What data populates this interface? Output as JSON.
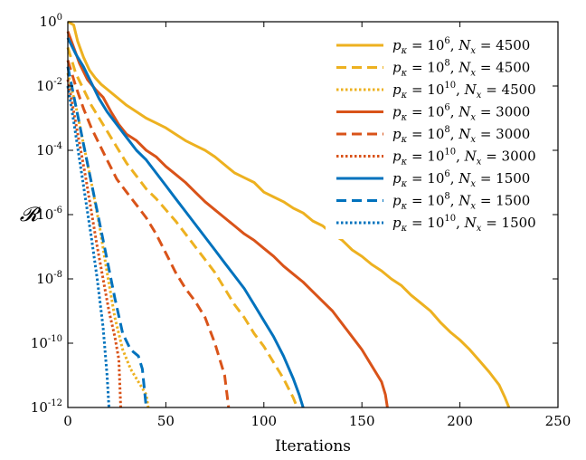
{
  "chart_data": {
    "type": "line",
    "title": "",
    "xlabel": "Iterations",
    "ylabel": "𝓡",
    "xlim": [
      0,
      250
    ],
    "ylim_log10": [
      -12,
      0
    ],
    "y_scale": "log",
    "x_ticks": [
      "0",
      "50",
      "100",
      "150",
      "200",
      "250"
    ],
    "y_ticks": [
      {
        "base": "10",
        "exp": "0"
      },
      {
        "base": "10",
        "exp": "-2"
      },
      {
        "base": "10",
        "exp": "-4"
      },
      {
        "base": "10",
        "exp": "-6"
      },
      {
        "base": "10",
        "exp": "-8"
      },
      {
        "base": "10",
        "exp": "-10"
      },
      {
        "base": "10",
        "exp": "-12"
      }
    ],
    "legend_position": "top-right",
    "series": [
      {
        "name": "p_κ = 10^6, N_x = 4500",
        "p_exp": "6",
        "nx": "4500",
        "color": "#EDB120",
        "dash": "solid",
        "points": [
          [
            0,
            0
          ],
          [
            3,
            -0.1
          ],
          [
            5,
            -0.6
          ],
          [
            8,
            -1.1
          ],
          [
            11,
            -1.5
          ],
          [
            14,
            -1.75
          ],
          [
            17,
            -1.95
          ],
          [
            20,
            -2.1
          ],
          [
            25,
            -2.35
          ],
          [
            30,
            -2.6
          ],
          [
            35,
            -2.8
          ],
          [
            40,
            -3.0
          ],
          [
            45,
            -3.15
          ],
          [
            50,
            -3.3
          ],
          [
            55,
            -3.5
          ],
          [
            60,
            -3.7
          ],
          [
            65,
            -3.85
          ],
          [
            70,
            -4.0
          ],
          [
            75,
            -4.2
          ],
          [
            80,
            -4.45
          ],
          [
            85,
            -4.7
          ],
          [
            90,
            -4.85
          ],
          [
            95,
            -5.0
          ],
          [
            100,
            -5.3
          ],
          [
            105,
            -5.45
          ],
          [
            110,
            -5.6
          ],
          [
            115,
            -5.8
          ],
          [
            120,
            -5.95
          ],
          [
            125,
            -6.2
          ],
          [
            130,
            -6.35
          ],
          [
            135,
            -6.6
          ],
          [
            140,
            -6.8
          ],
          [
            145,
            -7.1
          ],
          [
            150,
            -7.3
          ],
          [
            155,
            -7.55
          ],
          [
            160,
            -7.75
          ],
          [
            165,
            -8.0
          ],
          [
            170,
            -8.2
          ],
          [
            175,
            -8.5
          ],
          [
            180,
            -8.75
          ],
          [
            185,
            -9.0
          ],
          [
            190,
            -9.35
          ],
          [
            195,
            -9.65
          ],
          [
            200,
            -9.9
          ],
          [
            205,
            -10.2
          ],
          [
            210,
            -10.55
          ],
          [
            215,
            -10.9
          ],
          [
            220,
            -11.3
          ],
          [
            223,
            -11.7
          ],
          [
            225,
            -12
          ]
        ]
      },
      {
        "name": "p_κ = 10^8, N_x = 4500",
        "p_exp": "8",
        "nx": "4500",
        "color": "#EDB120",
        "dash": "dashed",
        "points": [
          [
            0,
            -0.8
          ],
          [
            4,
            -1.6
          ],
          [
            8,
            -2.1
          ],
          [
            12,
            -2.6
          ],
          [
            16,
            -3.0
          ],
          [
            20,
            -3.4
          ],
          [
            25,
            -3.9
          ],
          [
            30,
            -4.4
          ],
          [
            35,
            -4.8
          ],
          [
            40,
            -5.2
          ],
          [
            45,
            -5.5
          ],
          [
            50,
            -5.85
          ],
          [
            55,
            -6.2
          ],
          [
            60,
            -6.6
          ],
          [
            65,
            -7.0
          ],
          [
            70,
            -7.4
          ],
          [
            75,
            -7.8
          ],
          [
            80,
            -8.3
          ],
          [
            85,
            -8.8
          ],
          [
            90,
            -9.2
          ],
          [
            95,
            -9.7
          ],
          [
            100,
            -10.1
          ],
          [
            105,
            -10.6
          ],
          [
            110,
            -11.1
          ],
          [
            115,
            -11.7
          ],
          [
            117,
            -12
          ]
        ]
      },
      {
        "name": "p_κ = 10^10, N_x = 4500",
        "p_exp": "10",
        "nx": "4500",
        "color": "#EDB120",
        "dash": "dotted",
        "points": [
          [
            0,
            -1.6
          ],
          [
            4,
            -2.6
          ],
          [
            8,
            -3.8
          ],
          [
            12,
            -5.0
          ],
          [
            16,
            -6.3
          ],
          [
            20,
            -7.8
          ],
          [
            24,
            -9.2
          ],
          [
            28,
            -10.2
          ],
          [
            32,
            -10.8
          ],
          [
            36,
            -11.2
          ],
          [
            40,
            -11.6
          ],
          [
            41,
            -12
          ]
        ]
      },
      {
        "name": "p_κ = 10^6, N_x = 3000",
        "p_exp": "6",
        "nx": "3000",
        "color": "#D95319",
        "dash": "solid",
        "points": [
          [
            0,
            -0.3
          ],
          [
            3,
            -0.8
          ],
          [
            6,
            -1.3
          ],
          [
            10,
            -1.8
          ],
          [
            14,
            -2.1
          ],
          [
            18,
            -2.35
          ],
          [
            22,
            -2.8
          ],
          [
            26,
            -3.2
          ],
          [
            30,
            -3.5
          ],
          [
            35,
            -3.7
          ],
          [
            40,
            -4.0
          ],
          [
            45,
            -4.2
          ],
          [
            50,
            -4.5
          ],
          [
            55,
            -4.75
          ],
          [
            60,
            -5.0
          ],
          [
            65,
            -5.3
          ],
          [
            70,
            -5.6
          ],
          [
            75,
            -5.85
          ],
          [
            80,
            -6.1
          ],
          [
            85,
            -6.35
          ],
          [
            90,
            -6.6
          ],
          [
            95,
            -6.8
          ],
          [
            100,
            -7.05
          ],
          [
            105,
            -7.3
          ],
          [
            110,
            -7.6
          ],
          [
            115,
            -7.85
          ],
          [
            120,
            -8.1
          ],
          [
            125,
            -8.4
          ],
          [
            130,
            -8.7
          ],
          [
            135,
            -9.0
          ],
          [
            140,
            -9.4
          ],
          [
            145,
            -9.8
          ],
          [
            150,
            -10.2
          ],
          [
            155,
            -10.7
          ],
          [
            160,
            -11.2
          ],
          [
            162,
            -11.6
          ],
          [
            163,
            -12
          ]
        ]
      },
      {
        "name": "p_κ = 10^8, N_x = 3000",
        "p_exp": "8",
        "nx": "3000",
        "color": "#D95319",
        "dash": "dashed",
        "points": [
          [
            0,
            -1.2
          ],
          [
            4,
            -2.0
          ],
          [
            8,
            -2.7
          ],
          [
            12,
            -3.3
          ],
          [
            16,
            -3.8
          ],
          [
            20,
            -4.3
          ],
          [
            25,
            -4.9
          ],
          [
            30,
            -5.3
          ],
          [
            35,
            -5.7
          ],
          [
            40,
            -6.1
          ],
          [
            45,
            -6.6
          ],
          [
            50,
            -7.2
          ],
          [
            55,
            -7.8
          ],
          [
            60,
            -8.3
          ],
          [
            65,
            -8.7
          ],
          [
            70,
            -9.2
          ],
          [
            75,
            -10.0
          ],
          [
            80,
            -11.0
          ],
          [
            82,
            -12
          ]
        ]
      },
      {
        "name": "p_κ = 10^10, N_x = 3000",
        "p_exp": "10",
        "nx": "3000",
        "color": "#D95319",
        "dash": "dotted",
        "points": [
          [
            0,
            -1.8
          ],
          [
            3,
            -2.8
          ],
          [
            6,
            -3.8
          ],
          [
            9,
            -4.8
          ],
          [
            12,
            -5.9
          ],
          [
            15,
            -7.0
          ],
          [
            18,
            -8.0
          ],
          [
            21,
            -9.0
          ],
          [
            24,
            -9.8
          ],
          [
            26,
            -10.5
          ],
          [
            27,
            -12
          ]
        ]
      },
      {
        "name": "p_κ = 10^6, N_x = 1500",
        "p_exp": "6",
        "nx": "1500",
        "color": "#0072BD",
        "dash": "solid",
        "points": [
          [
            0,
            -0.5
          ],
          [
            4,
            -1.0
          ],
          [
            8,
            -1.4
          ],
          [
            12,
            -1.9
          ],
          [
            16,
            -2.4
          ],
          [
            20,
            -2.8
          ],
          [
            25,
            -3.2
          ],
          [
            30,
            -3.6
          ],
          [
            35,
            -4.0
          ],
          [
            40,
            -4.3
          ],
          [
            45,
            -4.7
          ],
          [
            50,
            -5.1
          ],
          [
            55,
            -5.5
          ],
          [
            60,
            -5.9
          ],
          [
            65,
            -6.3
          ],
          [
            70,
            -6.7
          ],
          [
            75,
            -7.1
          ],
          [
            80,
            -7.5
          ],
          [
            85,
            -7.9
          ],
          [
            90,
            -8.3
          ],
          [
            95,
            -8.8
          ],
          [
            100,
            -9.3
          ],
          [
            105,
            -9.8
          ],
          [
            110,
            -10.4
          ],
          [
            115,
            -11.1
          ],
          [
            118,
            -11.6
          ],
          [
            120,
            -12
          ]
        ]
      },
      {
        "name": "p_κ = 10^8, N_x = 1500",
        "p_exp": "8",
        "nx": "1500",
        "color": "#0072BD",
        "dash": "dashed",
        "points": [
          [
            0,
            -1.4
          ],
          [
            4,
            -2.6
          ],
          [
            8,
            -3.8
          ],
          [
            12,
            -5.0
          ],
          [
            16,
            -6.2
          ],
          [
            20,
            -7.4
          ],
          [
            24,
            -8.6
          ],
          [
            28,
            -9.7
          ],
          [
            32,
            -10.2
          ],
          [
            36,
            -10.4
          ],
          [
            38,
            -10.8
          ],
          [
            40,
            -12
          ]
        ]
      },
      {
        "name": "p_κ = 10^10, N_x = 1500",
        "p_exp": "10",
        "nx": "1500",
        "color": "#0072BD",
        "dash": "dotted",
        "points": [
          [
            0,
            -2.0
          ],
          [
            3,
            -3.1
          ],
          [
            6,
            -4.3
          ],
          [
            9,
            -5.5
          ],
          [
            12,
            -6.7
          ],
          [
            15,
            -8.0
          ],
          [
            18,
            -9.5
          ],
          [
            20,
            -11.0
          ],
          [
            21,
            -12
          ]
        ]
      }
    ]
  }
}
